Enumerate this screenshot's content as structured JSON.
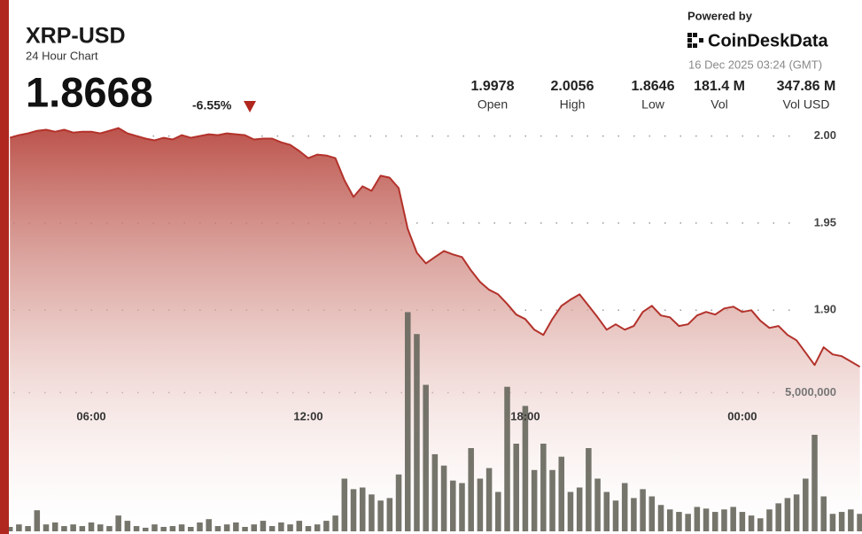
{
  "header": {
    "title": "XRP-USD",
    "subtitle": "24 Hour Chart",
    "price": 1.8668,
    "change": {
      "value": -6.55,
      "label": "-6.55%"
    },
    "powered_by": "Powered by",
    "brand": "CoinDeskData",
    "timestamp": "16 Dec 2025 03:24 (GMT)",
    "stats": [
      {
        "name": "Open",
        "value": 1.9978
      },
      {
        "name": "High",
        "value": 2.0056
      },
      {
        "name": "Low",
        "value": 1.8646
      },
      {
        "name": "Vol",
        "value": 181400000,
        "value_label": "181.4 M"
      },
      {
        "name": "Vol USD",
        "value": 347860000,
        "value_label": "347.86 M"
      }
    ]
  },
  "chart_data": {
    "type": "line",
    "x": [
      3.75,
      4,
      4.25,
      4.5,
      4.75,
      5,
      5.25,
      5.5,
      5.75,
      6,
      6.25,
      6.5,
      6.75,
      7,
      7.25,
      7.5,
      7.75,
      8,
      8.25,
      8.5,
      8.75,
      9,
      9.25,
      9.5,
      9.75,
      10,
      10.25,
      10.5,
      10.75,
      11,
      11.25,
      11.5,
      11.75,
      12,
      12.25,
      12.5,
      12.75,
      13,
      13.25,
      13.5,
      13.75,
      14,
      14.25,
      14.5,
      14.75,
      15,
      15.25,
      15.5,
      15.75,
      16,
      16.25,
      16.5,
      16.75,
      17,
      17.25,
      17.5,
      17.75,
      18,
      18.25,
      18.5,
      18.75,
      19,
      19.25,
      19.5,
      19.75,
      20,
      20.25,
      20.5,
      20.75,
      21,
      21.25,
      21.5,
      21.75,
      22,
      22.25,
      22.5,
      22.75,
      23,
      23.25,
      23.5,
      23.75,
      24,
      24.25,
      24.5,
      24.75,
      25,
      25.25,
      25.5,
      25.75,
      26,
      26.25,
      26.5,
      26.75,
      27,
      27.25
    ],
    "series": [
      {
        "name": "Price",
        "type": "line",
        "color": "#b3322b",
        "values": [
          1.999,
          2.0005,
          2.0015,
          2.003,
          2.0036,
          2.0025,
          2.0036,
          2.002,
          2.0025,
          2.0025,
          2.0015,
          2.003,
          2.0046,
          2.0015,
          2,
          1.9985,
          1.9975,
          1.999,
          1.998,
          2.0005,
          1.999,
          2,
          2.001,
          2.0005,
          2.0015,
          2.001,
          2.0005,
          1.998,
          1.9985,
          1.9985,
          1.9964,
          1.9949,
          1.9914,
          1.9873,
          1.9893,
          1.9888,
          1.9873,
          1.9746,
          1.965,
          1.9711,
          1.9685,
          1.9772,
          1.9761,
          1.9701,
          1.9467,
          1.933,
          1.9269,
          1.9305,
          1.934,
          1.932,
          1.9305,
          1.9228,
          1.9162,
          1.9117,
          1.9091,
          1.9036,
          1.8975,
          1.8949,
          1.8888,
          1.8858,
          1.8949,
          1.9025,
          1.9061,
          1.9091,
          1.9025,
          1.8959,
          1.8888,
          1.8919,
          1.8888,
          1.8909,
          1.899,
          1.9025,
          1.897,
          1.8959,
          1.8909,
          1.8919,
          1.897,
          1.899,
          1.8975,
          1.901,
          1.902,
          1.899,
          1.9,
          1.8939,
          1.8898,
          1.8909,
          1.8858,
          1.8827,
          1.8756,
          1.8685,
          1.8787,
          1.8746,
          1.8736,
          1.8706,
          1.8675
        ]
      },
      {
        "name": "Volume",
        "type": "bar",
        "axis": "y2",
        "color": "#66665c",
        "values": [
          160000,
          250000,
          190000,
          760000,
          250000,
          320000,
          190000,
          250000,
          190000,
          320000,
          250000,
          190000,
          570000,
          380000,
          190000,
          130000,
          250000,
          160000,
          190000,
          250000,
          160000,
          320000,
          440000,
          190000,
          250000,
          320000,
          160000,
          250000,
          380000,
          190000,
          320000,
          250000,
          380000,
          190000,
          250000,
          380000,
          570000,
          1900000,
          1520000,
          1580000,
          1330000,
          1110000,
          1200000,
          2050000,
          7900000,
          7110000,
          5280000,
          2780000,
          2370000,
          1830000,
          1740000,
          3000000,
          1900000,
          2280000,
          1420000,
          5210000,
          3160000,
          4520000,
          2210000,
          3160000,
          2210000,
          2690000,
          1420000,
          1580000,
          3000000,
          1900000,
          1420000,
          1110000,
          1740000,
          1200000,
          1520000,
          1260000,
          950000,
          790000,
          700000,
          630000,
          880000,
          820000,
          700000,
          790000,
          880000,
          700000,
          570000,
          470000,
          790000,
          1010000,
          1200000,
          1330000,
          1900000,
          3480000,
          1260000,
          630000,
          700000,
          790000,
          630000
        ]
      }
    ],
    "xlim": [
      3.77,
      27.31
    ],
    "xticks": [
      {
        "value": 6,
        "label": "06:00"
      },
      {
        "value": 12,
        "label": "12:00"
      },
      {
        "value": 18,
        "label": "18:00"
      },
      {
        "value": 24,
        "label": "00:00"
      }
    ],
    "ylim": [
      1.773,
      2.012
    ],
    "yticks": [
      {
        "value": 1.9,
        "label": "1.90"
      },
      {
        "value": 1.95,
        "label": "1.95"
      },
      {
        "value": 2,
        "label": "2.00"
      }
    ],
    "y2lim": [
      0,
      15000000
    ],
    "y2ticks": [
      {
        "value": 5000000,
        "label": "5,000,000"
      }
    ],
    "grid": true
  }
}
